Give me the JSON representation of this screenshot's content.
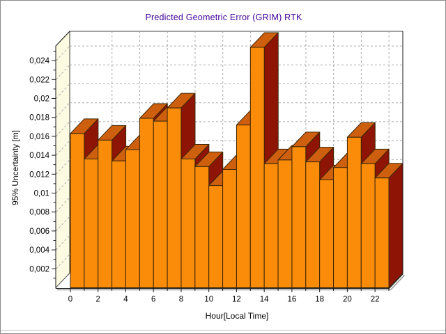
{
  "window": {
    "background": "#ffffff",
    "border_color": "#8a8a8a"
  },
  "chart_data": {
    "type": "bar",
    "projection": "3d",
    "title": "Predicted Geometric Error (GRIM) RTK",
    "title_color": "#400099",
    "xlabel": "Hour[Local Time]",
    "ylabel": "95% Uncertainty [m]",
    "x_hours": [
      0,
      1,
      2,
      3,
      4,
      5,
      6,
      7,
      8,
      9,
      10,
      11,
      12,
      13,
      14,
      15,
      16,
      17,
      18,
      19,
      20,
      21,
      22
    ],
    "values": [
      0.0163,
      0.0136,
      0.0156,
      0.0134,
      0.0146,
      0.0179,
      0.0176,
      0.019,
      0.0136,
      0.0128,
      0.0108,
      0.0125,
      0.0172,
      0.0254,
      0.0131,
      0.0135,
      0.0149,
      0.0133,
      0.0114,
      0.0127,
      0.0159,
      0.0131,
      0.0116
    ],
    "x_axis_range": [
      0,
      23
    ],
    "ylim": [
      0,
      0.0256
    ],
    "y_tick_step": 0.002,
    "y_tick_labels": [
      "0,002",
      "0,004",
      "0,006",
      "0,008",
      "0,01",
      "0,012",
      "0,014",
      "0,016",
      "0,018",
      "0,02",
      "0,022",
      "0,024"
    ],
    "x_tick_labels": [
      "0",
      "2",
      "4",
      "6",
      "8",
      "10",
      "12",
      "14",
      "16",
      "18",
      "20",
      "22"
    ],
    "grid": true,
    "legend": false,
    "colors": {
      "bar_front": "#fa8c0a",
      "bar_top": "#cd5f0e",
      "bar_side": "#8e1505",
      "bar_outline": "#3b2506",
      "wall_side": "#fcfae1",
      "wall_back": "#ffffff",
      "floor": "#ffffff",
      "gridline": "#ababab",
      "frame": "#1a1a1a",
      "shadow": "#999999",
      "tick_text": "#000000"
    }
  }
}
